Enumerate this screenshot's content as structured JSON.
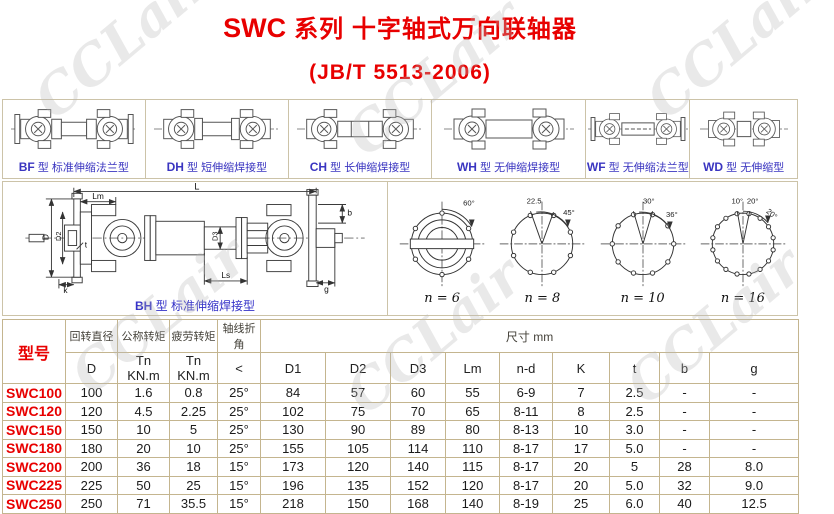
{
  "page": {
    "title_prefix": "SWC",
    "title_rest": "系列 十字轴式万向联轴器",
    "subtitle": "(JB/T 5513-2006)"
  },
  "watermark": {
    "text": "CCLair",
    "color": "#b9b9b9"
  },
  "colors": {
    "accent_red": "#e80000",
    "label_blue": "#3a35c0",
    "border_tan": "#c4b58f"
  },
  "type_gallery": [
    {
      "code": "BF",
      "label": "型  标准伸缩法兰型"
    },
    {
      "code": "DH",
      "label": "型  短伸缩焊接型"
    },
    {
      "code": "CH",
      "label": "型  长伸缩焊接型"
    },
    {
      "code": "WH",
      "label": "型  无伸缩焊接型"
    },
    {
      "code": "WF",
      "label": "型  无伸缩法兰型"
    },
    {
      "code": "WD",
      "label": "型  无伸缩型"
    }
  ],
  "drawing": {
    "caption_code": "BH",
    "caption_label": "型  标准伸缩焊接型",
    "dim_labels": [
      "L",
      "Lm",
      "Ls",
      "k",
      "t",
      "b",
      "g",
      "D",
      "D2",
      "D3"
    ],
    "flange_views": [
      {
        "n_label": "n = 6",
        "holes": 6,
        "angles": [
          "60°"
        ]
      },
      {
        "n_label": "n = 8",
        "holes": 8,
        "angles": [
          "22.5",
          "45°"
        ]
      },
      {
        "n_label": "n = 10",
        "holes": 10,
        "angles": [
          "30°",
          "36°"
        ]
      },
      {
        "n_label": "n = 16",
        "holes": 16,
        "angles": [
          "10°",
          "20°",
          "20°"
        ]
      }
    ]
  },
  "table": {
    "header": {
      "model": "型号",
      "col_groups": [
        {
          "top": "回转直径",
          "bottom": "D"
        },
        {
          "top": "公称转矩",
          "bottom": "Tn KN.m"
        },
        {
          "top": "疲劳转矩",
          "bottom": "Tn KN.m"
        },
        {
          "top": "轴线折角",
          "bottom": "<"
        }
      ],
      "size_group": "尺寸  mm",
      "size_cols": [
        "D1",
        "D2",
        "D3",
        "Lm",
        "n-d",
        "K",
        "t",
        "b",
        "g"
      ]
    },
    "rows": [
      {
        "model": "SWC100",
        "values": [
          "100",
          "1.6",
          "0.8",
          "25°",
          "84",
          "57",
          "60",
          "55",
          "6-9",
          "7",
          "2.5",
          "-",
          "-"
        ]
      },
      {
        "model": "SWC120",
        "values": [
          "120",
          "4.5",
          "2.25",
          "25°",
          "102",
          "75",
          "70",
          "65",
          "8-11",
          "8",
          "2.5",
          "-",
          "-"
        ]
      },
      {
        "model": "SWC150",
        "values": [
          "150",
          "10",
          "5",
          "25°",
          "130",
          "90",
          "89",
          "80",
          "8-13",
          "10",
          "3.0",
          "-",
          "-"
        ]
      },
      {
        "model": "SWC180",
        "values": [
          "180",
          "20",
          "10",
          "25°",
          "155",
          "105",
          "114",
          "110",
          "8-17",
          "17",
          "5.0",
          "-",
          "-"
        ]
      },
      {
        "model": "SWC200",
        "values": [
          "200",
          "36",
          "18",
          "15°",
          "173",
          "120",
          "140",
          "115",
          "8-17",
          "20",
          "5",
          "28",
          "8.0"
        ]
      },
      {
        "model": "SWC225",
        "values": [
          "225",
          "50",
          "25",
          "15°",
          "196",
          "135",
          "152",
          "120",
          "8-17",
          "20",
          "5.0",
          "32",
          "9.0"
        ]
      },
      {
        "model": "SWC250",
        "values": [
          "250",
          "71",
          "35.5",
          "15°",
          "218",
          "150",
          "168",
          "140",
          "8-19",
          "25",
          "6.0",
          "40",
          "12.5"
        ]
      }
    ]
  }
}
